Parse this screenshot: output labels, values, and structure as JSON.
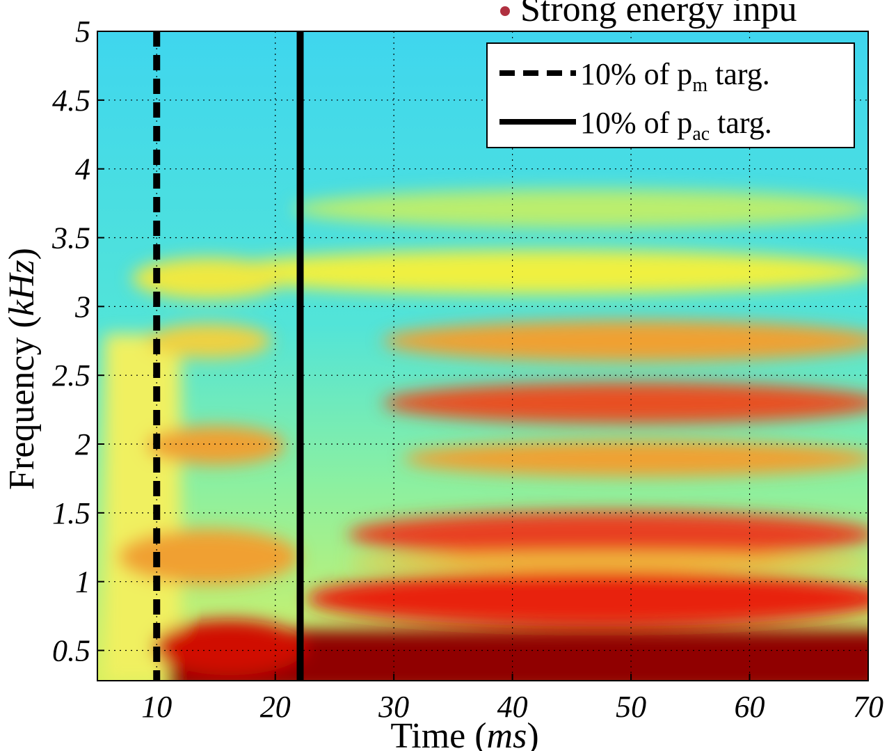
{
  "chart_data": {
    "type": "spectrogram",
    "header_fragment": "Strong energy inpu",
    "x_label": {
      "text": "Time (",
      "unit": "ms",
      "close": ")"
    },
    "y_label": {
      "text": "Frequency (",
      "unit": "kHz",
      "close": ")"
    },
    "xlim": [
      5,
      70
    ],
    "ylim": [
      0.28,
      5
    ],
    "xticks": [
      10,
      20,
      30,
      40,
      50,
      60,
      70
    ],
    "yticks": [
      0.5,
      1,
      1.5,
      2,
      2.5,
      3,
      3.5,
      4,
      4.5,
      5
    ],
    "grid": true,
    "legend": "upper right",
    "series": [
      {
        "name": {
          "text": "10% of p",
          "sub": "m",
          "suffix": " targ."
        },
        "style": "dashed",
        "color": "#000000",
        "x": 10
      },
      {
        "name": {
          "text": "10% of p",
          "sub": "ac",
          "suffix": " targ."
        },
        "style": "solid",
        "color": "#000000",
        "x": 22.1
      }
    ]
  }
}
